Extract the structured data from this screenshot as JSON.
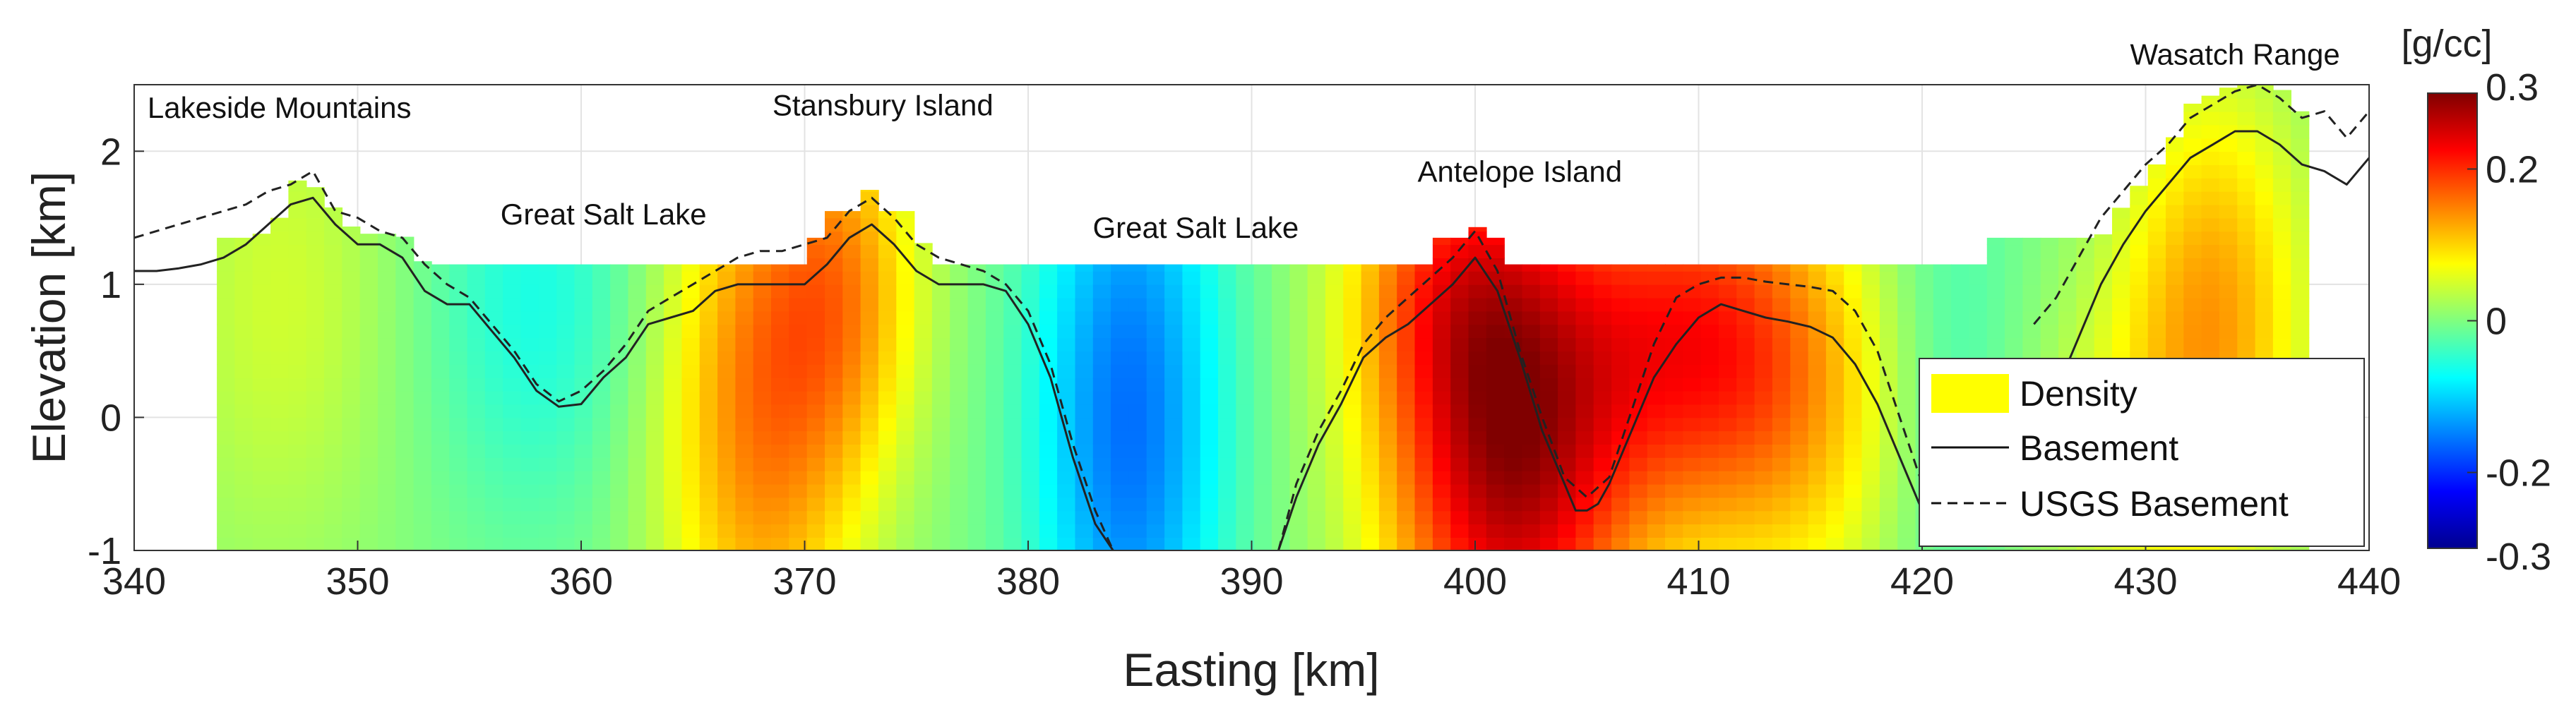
{
  "chart_data": {
    "type": "heatmap",
    "xlabel": "Easting [km]",
    "ylabel": "Elevation [km]",
    "xlim": [
      340,
      440
    ],
    "ylim": [
      -1,
      2.5
    ],
    "xticks": [
      340,
      350,
      360,
      370,
      380,
      390,
      400,
      410,
      420,
      430,
      440
    ],
    "yticks": [
      -1,
      0,
      1,
      2
    ],
    "grid": true,
    "colormap": "jet",
    "colorbar": {
      "label": "[g/cc]",
      "range": [
        -0.3,
        0.3
      ],
      "ticks": [
        {
          "value": 0.3,
          "label": "0.3"
        },
        {
          "value": 0.2,
          "label": "0.2"
        },
        {
          "value": 0.0,
          "label": "0"
        },
        {
          "value": -0.2,
          "label": "-0.2"
        },
        {
          "value": -0.3,
          "label": "-0.3"
        }
      ]
    },
    "annotations": [
      {
        "text": "Lakeside Mountains",
        "x": 346.5,
        "y": 2.25
      },
      {
        "text": "Great Salt Lake",
        "x": 361,
        "y": 1.45
      },
      {
        "text": "Stansbury Island",
        "x": 373.5,
        "y": 2.27
      },
      {
        "text": "Great Salt Lake",
        "x": 387.5,
        "y": 1.35
      },
      {
        "text": "Antelope Island",
        "x": 402,
        "y": 1.77
      },
      {
        "text": "Wasatch Range",
        "x": 434,
        "y": 2.65
      }
    ],
    "legend": {
      "placement": "lower-right",
      "entries": [
        {
          "label": "Density",
          "style": "patch",
          "color": "#ffff00"
        },
        {
          "label": "Basement",
          "style": "solid"
        },
        {
          "label": "USGS Basement",
          "style": "dashed"
        }
      ]
    },
    "density_anomalies": [
      {
        "x": 347,
        "y": 1.2,
        "amp": 0.03,
        "sx": 3.5,
        "sy": 1.3
      },
      {
        "x": 346,
        "y": 0.3,
        "amp": 0.02,
        "sx": 4,
        "sy": 1.5
      },
      {
        "x": 358,
        "y": 0.9,
        "amp": -0.06,
        "sx": 3.5,
        "sy": 1.2
      },
      {
        "x": 368,
        "y": 0.1,
        "amp": 0.15,
        "sx": 3.2,
        "sy": 1.6
      },
      {
        "x": 372,
        "y": 1.0,
        "amp": 0.1,
        "sx": 2.5,
        "sy": 1.0
      },
      {
        "x": 384.5,
        "y": 0.0,
        "amp": -0.16,
        "sx": 3.0,
        "sy": 1.8
      },
      {
        "x": 401.5,
        "y": -0.15,
        "amp": 0.28,
        "sx": 4.0,
        "sy": 1.5
      },
      {
        "x": 398,
        "y": 1.1,
        "amp": 0.08,
        "sx": 3.0,
        "sy": 0.8
      },
      {
        "x": 410,
        "y": 0.6,
        "amp": 0.17,
        "sx": 4.0,
        "sy": 1.0
      },
      {
        "x": 415,
        "y": 0.0,
        "amp": 0.08,
        "sx": 4.0,
        "sy": 1.2
      },
      {
        "x": 421,
        "y": 0.2,
        "amp": -0.05,
        "sx": 2.5,
        "sy": 1.5
      },
      {
        "x": 433,
        "y": 0.9,
        "amp": 0.12,
        "sx": 3.0,
        "sy": 1.2
      },
      {
        "x": 430,
        "y": -0.4,
        "amp": 0.05,
        "sx": 4,
        "sy": 1
      }
    ],
    "model_top": [
      [
        343.7,
        1.35
      ],
      [
        345.5,
        1.35
      ],
      [
        346.5,
        1.5
      ],
      [
        347.5,
        1.85
      ],
      [
        348.5,
        1.65
      ],
      [
        350,
        1.38
      ],
      [
        352,
        1.38
      ],
      [
        353,
        1.15
      ],
      [
        370,
        1.15
      ],
      [
        371,
        1.55
      ],
      [
        372.5,
        1.55
      ],
      [
        373,
        1.75
      ],
      [
        373.5,
        1.55
      ],
      [
        375,
        1.55
      ],
      [
        375.5,
        1.15
      ],
      [
        398,
        1.15
      ],
      [
        398.5,
        1.35
      ],
      [
        399.5,
        1.35
      ],
      [
        399.8,
        1.55
      ],
      [
        400.3,
        1.35
      ],
      [
        401,
        1.35
      ],
      [
        401.5,
        1.15
      ],
      [
        423,
        1.15
      ],
      [
        423.2,
        1.35
      ],
      [
        428,
        1.35
      ],
      [
        429,
        1.6
      ],
      [
        431,
        2.0
      ],
      [
        432,
        2.35
      ],
      [
        434,
        2.5
      ],
      [
        436,
        2.5
      ],
      [
        436.5,
        2.3
      ],
      [
        437,
        2.3
      ]
    ],
    "model_xrange": [
      343.7,
      437
    ],
    "series": [
      {
        "name": "Basement",
        "style": "solid",
        "x": [
          340,
          341,
          342,
          343,
          344,
          345,
          346,
          347,
          348,
          349,
          350,
          351,
          352,
          353,
          354,
          355,
          356,
          357,
          358,
          359,
          360,
          361,
          362,
          363,
          364,
          365,
          366,
          367,
          368,
          369,
          370,
          371,
          372,
          373,
          374,
          375,
          376,
          377,
          378,
          379,
          380,
          381,
          382,
          383,
          383.8
        ],
        "y": [
          1.1,
          1.1,
          1.12,
          1.15,
          1.2,
          1.3,
          1.45,
          1.6,
          1.65,
          1.45,
          1.3,
          1.3,
          1.2,
          0.95,
          0.85,
          0.85,
          0.65,
          0.45,
          0.2,
          0.08,
          0.1,
          0.3,
          0.45,
          0.7,
          0.75,
          0.8,
          0.95,
          1.0,
          1.0,
          1.0,
          1.0,
          1.15,
          1.35,
          1.45,
          1.3,
          1.1,
          1.0,
          1.0,
          1.0,
          0.95,
          0.7,
          0.3,
          -0.3,
          -0.8,
          -1.0
        ]
      },
      {
        "name": "Basement",
        "style": "solid",
        "x": [
          391.2,
          392,
          393,
          394,
          395,
          396,
          397,
          398,
          399,
          400,
          401,
          402,
          403,
          404,
          404.5,
          405,
          405.5,
          406,
          407,
          408,
          409,
          410,
          411,
          412,
          413,
          414,
          415,
          416,
          417,
          418,
          419,
          420,
          421
        ],
        "y": [
          -1.0,
          -0.6,
          -0.2,
          0.1,
          0.45,
          0.6,
          0.7,
          0.85,
          1.0,
          1.2,
          0.95,
          0.45,
          -0.1,
          -0.5,
          -0.7,
          -0.7,
          -0.65,
          -0.5,
          -0.1,
          0.3,
          0.55,
          0.75,
          0.85,
          0.8,
          0.75,
          0.72,
          0.68,
          0.6,
          0.4,
          0.1,
          -0.3,
          -0.7,
          -0.85
        ]
      },
      {
        "name": "Basement",
        "style": "solid",
        "x": [
          426,
          427,
          428,
          429,
          430,
          431,
          432,
          433,
          434,
          435,
          436,
          437,
          438,
          439,
          440
        ],
        "y": [
          0.2,
          0.6,
          1.0,
          1.3,
          1.55,
          1.75,
          1.95,
          2.05,
          2.15,
          2.15,
          2.05,
          1.9,
          1.85,
          1.75,
          1.95
        ]
      },
      {
        "name": "USGS Basement",
        "style": "dashed",
        "x": [
          340,
          342,
          344,
          345,
          346,
          347,
          348,
          349,
          350,
          351,
          352,
          353,
          354,
          355,
          356,
          357,
          358,
          359,
          360,
          361,
          362,
          363,
          364,
          365,
          366,
          367,
          368,
          369,
          370,
          371,
          372,
          373,
          374,
          375,
          376,
          377,
          378,
          379,
          380,
          381,
          382,
          383,
          383.8
        ],
        "y": [
          1.35,
          1.45,
          1.55,
          1.6,
          1.7,
          1.75,
          1.85,
          1.55,
          1.5,
          1.4,
          1.35,
          1.15,
          1.0,
          0.9,
          0.7,
          0.5,
          0.25,
          0.12,
          0.2,
          0.35,
          0.55,
          0.8,
          0.9,
          1.0,
          1.1,
          1.2,
          1.25,
          1.25,
          1.3,
          1.35,
          1.55,
          1.65,
          1.5,
          1.3,
          1.2,
          1.15,
          1.1,
          1.0,
          0.8,
          0.4,
          -0.2,
          -0.7,
          -1.0
        ]
      },
      {
        "name": "USGS Basement",
        "style": "dashed",
        "x": [
          391.2,
          392,
          393,
          394,
          395,
          396,
          397,
          398,
          399,
          400,
          401,
          402,
          403,
          404,
          405,
          406,
          407,
          408,
          409,
          410,
          411,
          412,
          413,
          414,
          415,
          416,
          417,
          418,
          419,
          420,
          421
        ],
        "y": [
          -1.0,
          -0.5,
          -0.1,
          0.2,
          0.55,
          0.75,
          0.9,
          1.05,
          1.2,
          1.4,
          1.1,
          0.5,
          0.0,
          -0.45,
          -0.6,
          -0.45,
          0.05,
          0.55,
          0.9,
          1.0,
          1.05,
          1.05,
          1.02,
          1.0,
          0.98,
          0.95,
          0.8,
          0.5,
          0.0,
          -0.5,
          -0.85
        ]
      },
      {
        "name": "USGS Basement",
        "style": "dashed",
        "x": [
          425,
          426,
          427,
          428,
          429,
          430,
          431,
          432,
          433,
          434,
          435,
          436,
          437,
          438,
          439,
          440
        ],
        "y": [
          0.7,
          0.9,
          1.2,
          1.5,
          1.7,
          1.9,
          2.05,
          2.25,
          2.35,
          2.45,
          2.5,
          2.4,
          2.25,
          2.3,
          2.1,
          2.3
        ]
      }
    ]
  }
}
